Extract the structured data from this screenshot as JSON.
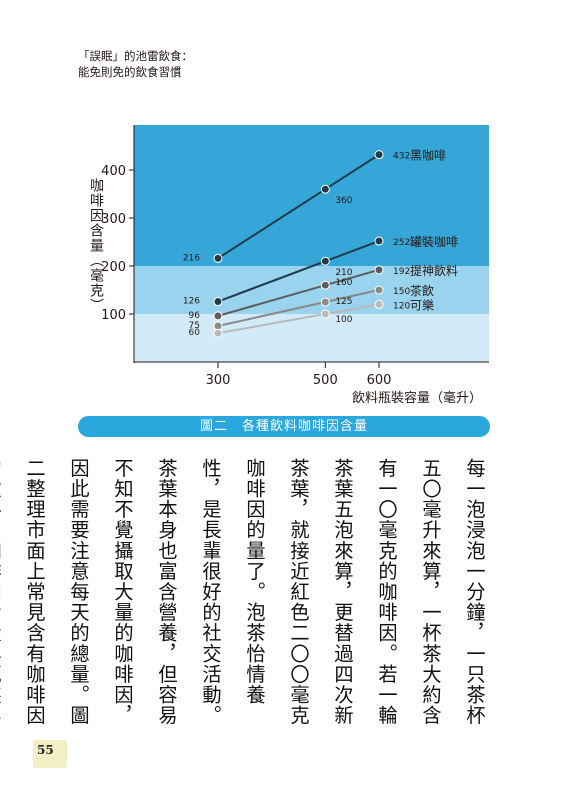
{
  "header": {
    "line1": "「誤眠」的池雷飲食：",
    "line2": "能免則免的飲食習慣"
  },
  "colors": {
    "band_top": "#36a6d8",
    "band_mid": "#9ad3ee",
    "band_low": "#d3ebf8",
    "caption_bg": "#2aa7dd",
    "page_badge": "#f3efc4"
  },
  "chart_data": {
    "type": "line",
    "title": "",
    "xlabel": "飲料瓶裝容量（毫升）",
    "ylabel": "咖啡因含量（毫克）",
    "x": [
      300,
      500,
      600
    ],
    "xlim": [
      200,
      700
    ],
    "ylim": [
      0,
      500
    ],
    "yticks": [
      100,
      200,
      300,
      400
    ],
    "grid": false,
    "series": [
      {
        "name": "黑咖啡",
        "values": [
          216,
          360,
          432
        ],
        "color": "#1d3b4b"
      },
      {
        "name": "罐裝咖啡",
        "values": [
          126,
          210,
          252
        ],
        "color": "#1d3b4b"
      },
      {
        "name": "提神飲料",
        "values": [
          96,
          160,
          192
        ],
        "color": "#5c5c5c"
      },
      {
        "name": "茶飲",
        "values": [
          75,
          125,
          150
        ],
        "color": "#8a8a8a"
      },
      {
        "name": "可樂",
        "values": [
          60,
          100,
          120
        ],
        "color": "#b9b9b9"
      }
    ]
  },
  "caption": "圖二　各種飲料咖啡因含量",
  "body_paragraphs": [
    "每一泡浸泡一分鐘，一只茶杯五〇毫升來算，一杯茶大約含有一〇毫克的咖啡因。若一輪茶葉五泡來算，更替過四次新茶葉，就接近紅色二〇〇毫克咖啡因的量了。泡茶怡情養性，是長輩很好的社交活動。茶葉本身也富含營養，但容易不知不覺攝取大量的咖啡因，因此需要注意每天的總量。圖二整理市面上常見含有咖啡因的飲料，咖啡因含量與瓶裝容量的關係，供大家對照。"
  ],
  "page_number": "55"
}
